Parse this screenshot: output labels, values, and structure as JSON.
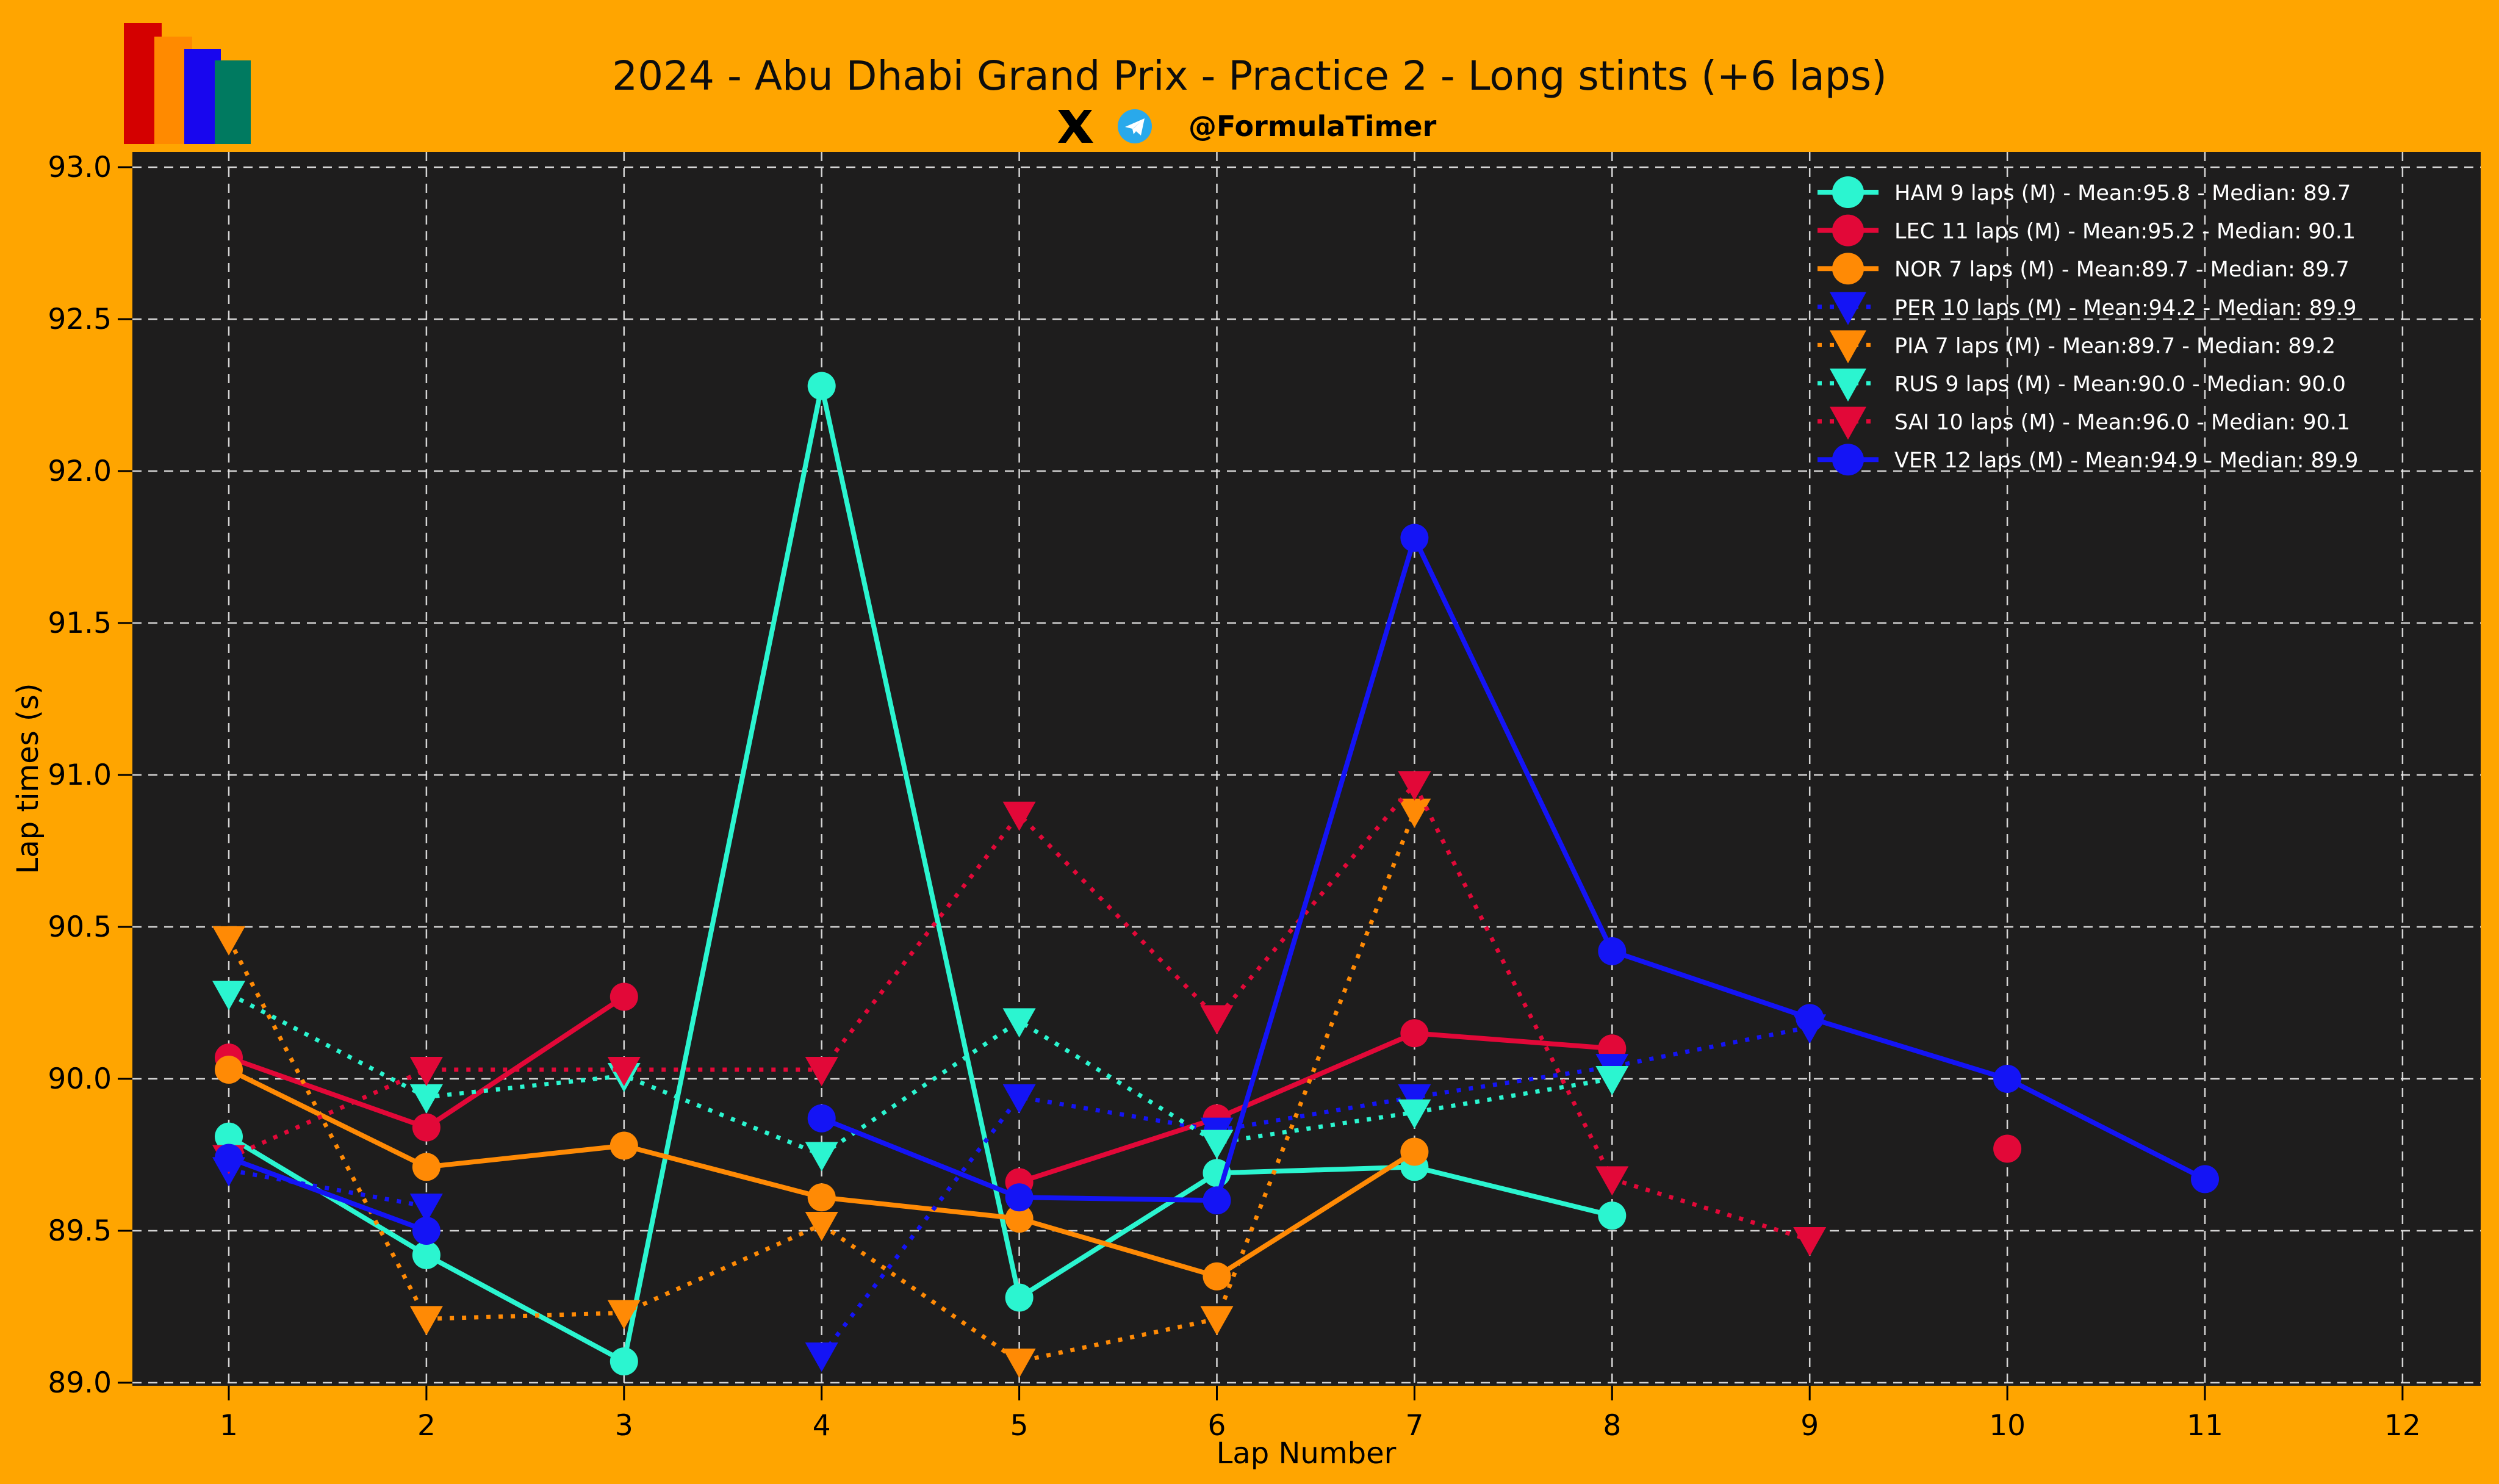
{
  "header": {
    "title": "2024 - Abu Dhabi Grand Prix - Practice 2 - Long stints (+6 laps)",
    "handle": "@FormulaTimer",
    "logo_colors": [
      "#D40000",
      "#FF8A00",
      "#1806EE",
      "#007A60"
    ],
    "telegram_blue": "#29A9EB"
  },
  "colors": {
    "page_background": "#FFA500",
    "plot_background": "#1E1D1D",
    "grid": "#E8E8E8",
    "tick_text": "#000000",
    "legend_text": "#FFFFFF",
    "mercedes": "#2BF5D0",
    "ferrari": "#E20838",
    "mclaren": "#FF8A05",
    "redbull": "#1414F5"
  },
  "chart_data": {
    "type": "line",
    "title": "2024 - Abu Dhabi Grand Prix - Practice 2 - Long stints (+6 laps)",
    "xlabel": "Lap Number",
    "ylabel": "Lap times (s)",
    "x_ticks": [
      1,
      2,
      3,
      4,
      5,
      6,
      7,
      8,
      9,
      10,
      11,
      12
    ],
    "y_ticks": [
      89.0,
      89.5,
      90.0,
      90.5,
      91.0,
      91.5,
      92.0,
      92.5,
      93.0
    ],
    "ylim": [
      88.99,
      93.05
    ],
    "xlim": [
      0.51,
      12.4
    ],
    "grid": true,
    "legend_position": "upper right",
    "series": [
      {
        "name": "HAM",
        "laps": 9,
        "tyre": "M",
        "mean": 95.8,
        "median": 89.7,
        "label": "HAM 9 laps (M) - Mean:95.8 - Median: 89.7",
        "color": "#2BF5D0",
        "marker": "circle",
        "linestyle": "solid",
        "points": [
          [
            1,
            89.81
          ],
          [
            2,
            89.42
          ],
          [
            3,
            89.07
          ],
          [
            4,
            92.28
          ],
          [
            5,
            89.28
          ],
          [
            6,
            89.69
          ],
          [
            7,
            89.71
          ],
          [
            8,
            89.55
          ]
        ]
      },
      {
        "name": "LEC",
        "laps": 11,
        "tyre": "M",
        "mean": 95.2,
        "median": 90.1,
        "label": "LEC 11 laps (M) - Mean:95.2 - Median: 90.1",
        "color": "#E20838",
        "marker": "circle",
        "linestyle": "solid",
        "points": [
          [
            1,
            90.07
          ],
          [
            2,
            89.84
          ],
          [
            3,
            90.27
          ],
          [
            5,
            89.66
          ],
          [
            6,
            89.87
          ],
          [
            7,
            90.15
          ],
          [
            8,
            90.1
          ],
          [
            10,
            89.77
          ]
        ]
      },
      {
        "name": "NOR",
        "laps": 7,
        "tyre": "M",
        "mean": 89.7,
        "median": 89.7,
        "label": "NOR 7 laps (M) - Mean:89.7 - Median: 89.7",
        "color": "#FF8A05",
        "marker": "circle",
        "linestyle": "solid",
        "points": [
          [
            1,
            90.03
          ],
          [
            2,
            89.71
          ],
          [
            3,
            89.78
          ],
          [
            4,
            89.61
          ],
          [
            5,
            89.54
          ],
          [
            6,
            89.35
          ],
          [
            7,
            89.76
          ]
        ]
      },
      {
        "name": "PER",
        "laps": 10,
        "tyre": "M",
        "mean": 94.2,
        "median": 89.9,
        "label": "PER 10 laps (M) - Mean:94.2 - Median: 89.9",
        "color": "#1414F5",
        "marker": "triangle",
        "linestyle": "dotted",
        "points": [
          [
            1,
            89.7
          ],
          [
            2,
            89.58
          ],
          [
            4,
            89.09
          ],
          [
            5,
            89.94
          ],
          [
            6,
            89.83
          ],
          [
            7,
            89.94
          ],
          [
            8,
            90.04
          ],
          [
            9,
            90.17
          ]
        ]
      },
      {
        "name": "PIA",
        "laps": 7,
        "tyre": "M",
        "mean": 89.7,
        "median": 89.2,
        "label": "PIA 7 laps (M) - Mean:89.7 - Median: 89.2",
        "color": "#FF8A05",
        "marker": "triangle",
        "linestyle": "dotted",
        "points": [
          [
            1,
            90.46
          ],
          [
            2,
            89.21
          ],
          [
            3,
            89.23
          ],
          [
            4,
            89.52
          ],
          [
            5,
            89.07
          ],
          [
            6,
            89.21
          ],
          [
            7,
            90.88
          ]
        ]
      },
      {
        "name": "RUS",
        "laps": 9,
        "tyre": "M",
        "mean": 90.0,
        "median": 90.0,
        "label": "RUS 9 laps (M) - Mean:90.0 - Median: 90.0",
        "color": "#2BF5D0",
        "marker": "triangle",
        "linestyle": "dotted",
        "points": [
          [
            1,
            90.28
          ],
          [
            2,
            89.94
          ],
          [
            3,
            90.01
          ],
          [
            4,
            89.75
          ],
          [
            5,
            90.19
          ],
          [
            6,
            89.79
          ],
          [
            7,
            89.89
          ],
          [
            8,
            90.0
          ]
        ]
      },
      {
        "name": "SAI",
        "laps": 10,
        "tyre": "M",
        "mean": 96.0,
        "median": 90.1,
        "label": "SAI 10 laps (M) - Mean:96.0 - Median: 90.1",
        "color": "#E20838",
        "marker": "triangle",
        "linestyle": "dotted",
        "points": [
          [
            1,
            89.74
          ],
          [
            2,
            90.03
          ],
          [
            3,
            90.03
          ],
          [
            4,
            90.03
          ],
          [
            5,
            90.87
          ],
          [
            6,
            90.2
          ],
          [
            7,
            90.97
          ],
          [
            8,
            89.67
          ],
          [
            9,
            89.47
          ]
        ]
      },
      {
        "name": "VER",
        "laps": 12,
        "tyre": "M",
        "mean": 94.9,
        "median": 89.9,
        "label": "VER 12 laps (M) - Mean:94.9 - Median: 89.9",
        "color": "#1414F5",
        "marker": "circle",
        "linestyle": "solid",
        "points": [
          [
            1,
            89.74
          ],
          [
            2,
            89.5
          ],
          [
            4,
            89.87
          ],
          [
            5,
            89.61
          ],
          [
            6,
            89.6
          ],
          [
            7,
            91.78
          ],
          [
            8,
            90.42
          ],
          [
            9,
            90.2
          ],
          [
            10,
            90.0
          ],
          [
            11,
            89.67
          ]
        ]
      }
    ]
  }
}
